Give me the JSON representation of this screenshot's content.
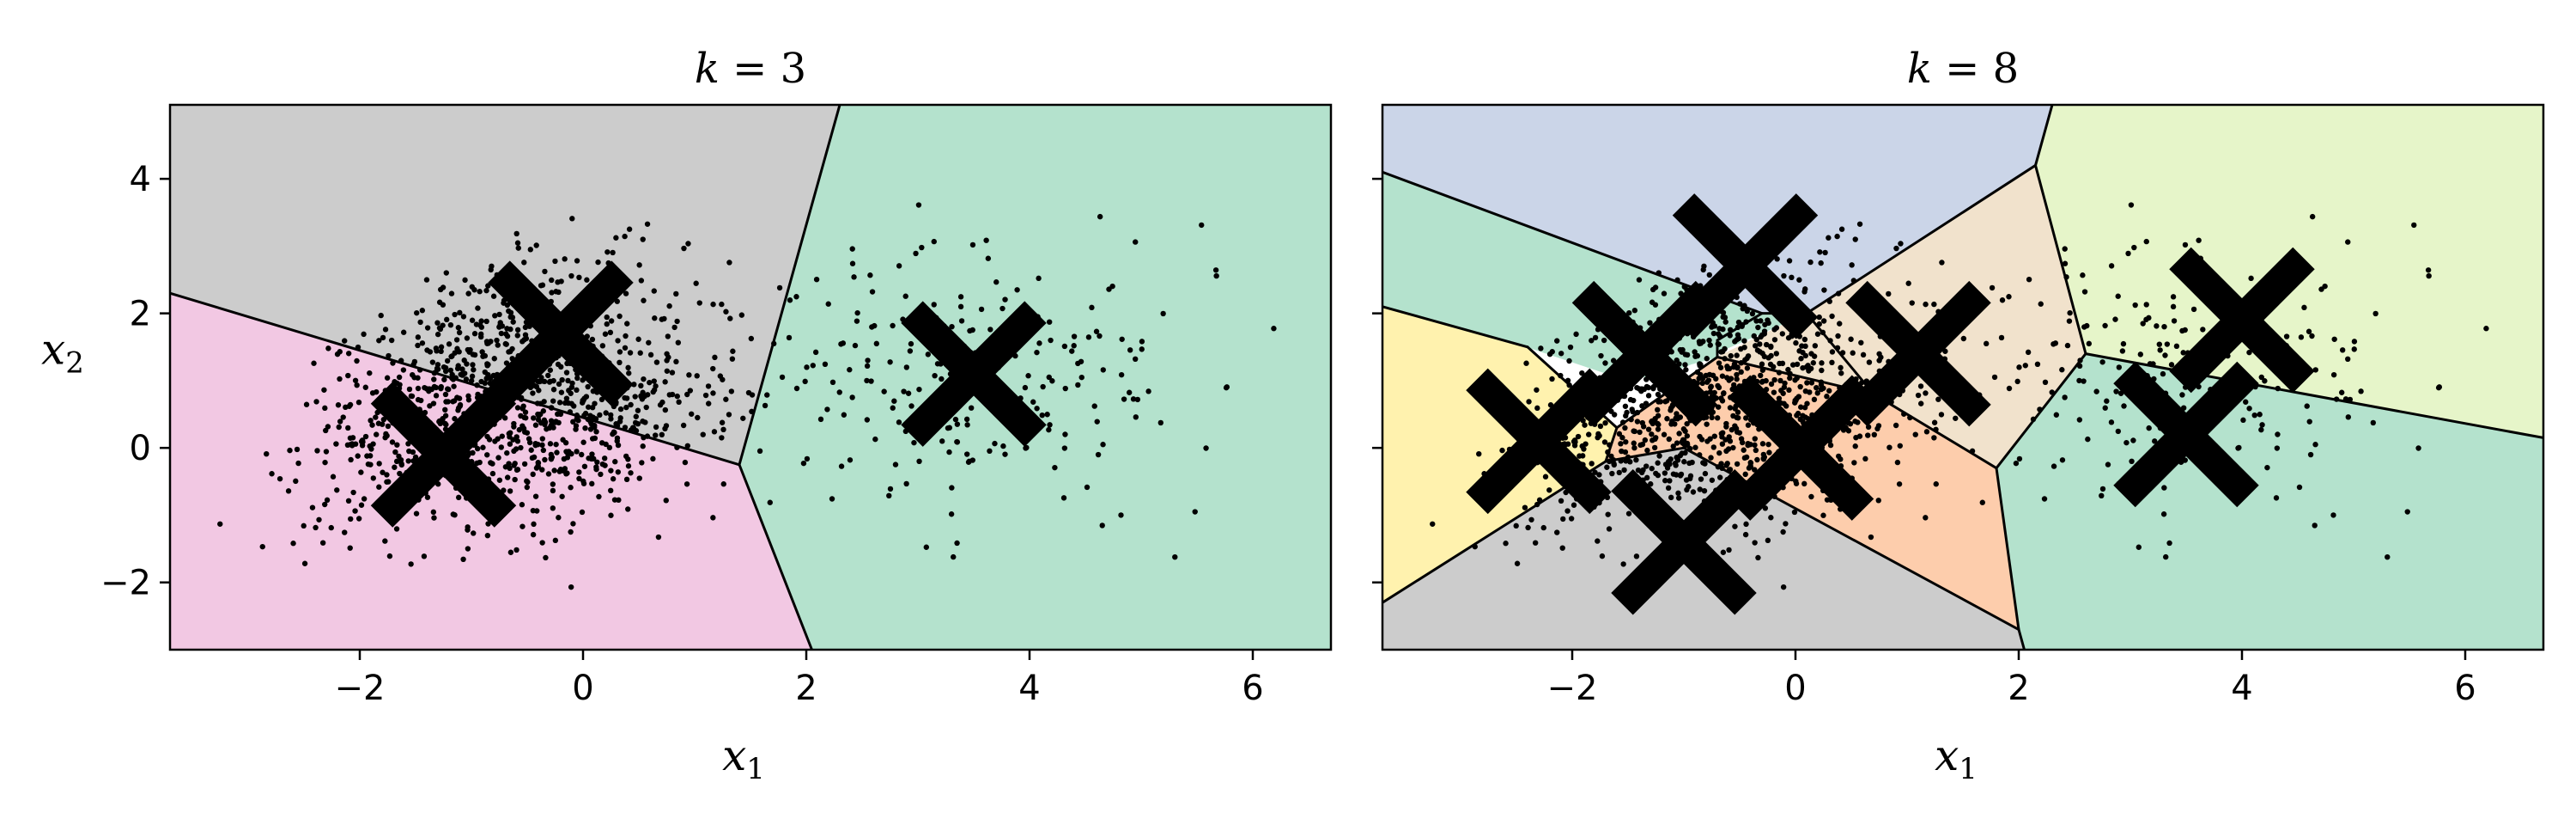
{
  "chart_data": [
    {
      "type": "scatter",
      "title": "k = 3",
      "title_var": "k",
      "title_val": "3",
      "xlabel": "x1",
      "ylabel": "x2",
      "xlim": [
        -3.7,
        6.7
      ],
      "ylim": [
        -3.0,
        5.1
      ],
      "x_ticks": [
        -2,
        0,
        2,
        4,
        6
      ],
      "y_ticks": [
        -2,
        0,
        2,
        4
      ],
      "x_tick_labels": [
        "−2",
        "0",
        "2",
        "4",
        "6"
      ],
      "y_tick_labels": [
        "−2",
        "0",
        "2",
        "4"
      ],
      "centroids": [
        [
          -1.25,
          -0.1
        ],
        [
          -0.2,
          1.7
        ],
        [
          3.5,
          1.1
        ]
      ],
      "regions": [
        {
          "color": "#cccccc",
          "polygon": [
            [
              -3.7,
              2.3
            ],
            [
              -3.7,
              5.1
            ],
            [
              2.3,
              5.1
            ],
            [
              1.4,
              -0.25
            ]
          ]
        },
        {
          "color": "#f2c8e3",
          "polygon": [
            [
              -3.7,
              -3.0
            ],
            [
              -3.7,
              2.3
            ],
            [
              1.4,
              -0.25
            ],
            [
              2.05,
              -3.0
            ]
          ]
        },
        {
          "color": "#b4e2cd",
          "polygon": [
            [
              2.05,
              -3.0
            ],
            [
              1.4,
              -0.25
            ],
            [
              2.3,
              5.1
            ],
            [
              6.7,
              5.1
            ],
            [
              6.7,
              -3.0
            ]
          ]
        }
      ],
      "boundaries": [
        [
          [
            -3.7,
            2.3
          ],
          [
            1.4,
            -0.25
          ]
        ],
        [
          [
            1.4,
            -0.25
          ],
          [
            2.3,
            5.1
          ]
        ],
        [
          [
            1.4,
            -0.25
          ],
          [
            2.05,
            -3.0
          ]
        ]
      ],
      "points_seed": 7
    },
    {
      "type": "scatter",
      "title": "k = 8",
      "title_var": "k",
      "title_val": "8",
      "xlabel": "x1",
      "ylabel": "",
      "xlim": [
        -3.7,
        6.7
      ],
      "ylim": [
        -3.0,
        5.1
      ],
      "x_ticks": [
        -2,
        0,
        2,
        4,
        6
      ],
      "y_ticks": [
        -2,
        0,
        2,
        4
      ],
      "x_tick_labels": [
        "−2",
        "0",
        "2",
        "4",
        "6"
      ],
      "y_tick_labels": [],
      "centroids": [
        [
          -2.3,
          0.1
        ],
        [
          -1.0,
          -1.4
        ],
        [
          -1.35,
          1.4
        ],
        [
          -0.45,
          2.7
        ],
        [
          0.05,
          0.0
        ],
        [
          1.1,
          1.4
        ],
        [
          3.5,
          0.2
        ],
        [
          4.0,
          1.9
        ]
      ],
      "regions": [
        {
          "color": "#cbd5e8",
          "polygon": [
            [
              -3.7,
              4.1
            ],
            [
              -3.7,
              5.1
            ],
            [
              2.3,
              5.1
            ],
            [
              2.15,
              4.2
            ],
            [
              0.1,
              2.0
            ],
            [
              -0.3,
              2.0
            ]
          ]
        },
        {
          "color": "#b4e2cd",
          "polygon": [
            [
              -3.7,
              2.1
            ],
            [
              -3.7,
              4.1
            ],
            [
              -0.3,
              2.0
            ],
            [
              -0.7,
              1.6
            ],
            [
              -0.7,
              1.35
            ],
            [
              -1.5,
              1.0
            ],
            [
              -2.4,
              1.5
            ]
          ]
        },
        {
          "color": "#fff2ae",
          "polygon": [
            [
              -3.7,
              -2.3
            ],
            [
              -3.7,
              2.1
            ],
            [
              -2.4,
              1.5
            ],
            [
              -1.6,
              0.3
            ],
            [
              -1.7,
              -0.2
            ]
          ]
        },
        {
          "color": "#cccccc",
          "polygon": [
            [
              -3.7,
              -3.0
            ],
            [
              -3.7,
              -2.3
            ],
            [
              -1.7,
              -0.2
            ],
            [
              -1.0,
              0.0
            ],
            [
              2.0,
              -2.7
            ],
            [
              2.05,
              -3.0
            ]
          ]
        },
        {
          "color": "#fdcdac",
          "polygon": [
            [
              -1.7,
              -0.2
            ],
            [
              -1.6,
              0.3
            ],
            [
              -0.7,
              1.35
            ],
            [
              0.7,
              0.8
            ],
            [
              1.8,
              -0.3
            ],
            [
              2.0,
              -2.7
            ],
            [
              -1.0,
              0.0
            ]
          ]
        },
        {
          "color": "#b4e2cd",
          "polygon": [
            [
              -1.5,
              1.0
            ],
            [
              -0.7,
              1.35
            ],
            [
              -0.7,
              1.6
            ],
            [
              -0.3,
              2.0
            ],
            [
              0.1,
              2.0
            ],
            [
              -1.0,
              1.2
            ]
          ]
        },
        {
          "color": "#f1e2cc",
          "polygon": [
            [
              0.1,
              2.0
            ],
            [
              2.15,
              4.2
            ],
            [
              2.6,
              1.4
            ],
            [
              1.8,
              -0.3
            ],
            [
              0.7,
              0.8
            ],
            [
              -0.7,
              1.35
            ]
          ]
        },
        {
          "color": "#e6f5c9",
          "polygon": [
            [
              2.15,
              4.2
            ],
            [
              2.3,
              5.1
            ],
            [
              6.7,
              5.1
            ],
            [
              6.7,
              0.15
            ],
            [
              2.6,
              1.4
            ]
          ]
        },
        {
          "color": "#b4e2cd",
          "polygon": [
            [
              1.8,
              -0.3
            ],
            [
              2.6,
              1.4
            ],
            [
              6.7,
              0.15
            ],
            [
              6.7,
              -3.0
            ],
            [
              2.05,
              -3.0
            ],
            [
              2.0,
              -2.7
            ]
          ]
        }
      ],
      "boundaries": [
        [
          [
            -3.7,
            4.1
          ],
          [
            -0.3,
            2.0
          ]
        ],
        [
          [
            -0.3,
            2.0
          ],
          [
            0.1,
            2.0
          ]
        ],
        [
          [
            0.1,
            2.0
          ],
          [
            2.15,
            4.2
          ]
        ],
        [
          [
            2.15,
            4.2
          ],
          [
            2.3,
            5.1
          ]
        ],
        [
          [
            2.15,
            4.2
          ],
          [
            2.6,
            1.4
          ]
        ],
        [
          [
            2.6,
            1.4
          ],
          [
            6.7,
            0.15
          ]
        ],
        [
          [
            2.6,
            1.4
          ],
          [
            1.8,
            -0.3
          ]
        ],
        [
          [
            1.8,
            -0.3
          ],
          [
            2.0,
            -2.7
          ]
        ],
        [
          [
            2.0,
            -2.7
          ],
          [
            2.05,
            -3.0
          ]
        ],
        [
          [
            2.0,
            -2.7
          ],
          [
            -1.0,
            0.0
          ]
        ],
        [
          [
            -1.0,
            0.0
          ],
          [
            -1.7,
            -0.2
          ]
        ],
        [
          [
            -1.7,
            -0.2
          ],
          [
            -3.7,
            -2.3
          ]
        ],
        [
          [
            -1.7,
            -0.2
          ],
          [
            -1.6,
            0.3
          ]
        ],
        [
          [
            -1.6,
            0.3
          ],
          [
            -2.4,
            1.5
          ]
        ],
        [
          [
            -2.4,
            1.5
          ],
          [
            -3.7,
            2.1
          ]
        ],
        [
          [
            -1.6,
            0.3
          ],
          [
            -0.7,
            1.35
          ]
        ],
        [
          [
            -0.7,
            1.35
          ],
          [
            0.7,
            0.8
          ]
        ],
        [
          [
            0.7,
            0.8
          ],
          [
            1.8,
            -0.3
          ]
        ],
        [
          [
            0.7,
            0.8
          ],
          [
            0.1,
            2.0
          ]
        ],
        [
          [
            -0.7,
            1.35
          ],
          [
            -0.7,
            1.6
          ]
        ],
        [
          [
            -0.7,
            1.6
          ],
          [
            -0.3,
            2.0
          ]
        ]
      ],
      "points_seed": 7
    }
  ]
}
